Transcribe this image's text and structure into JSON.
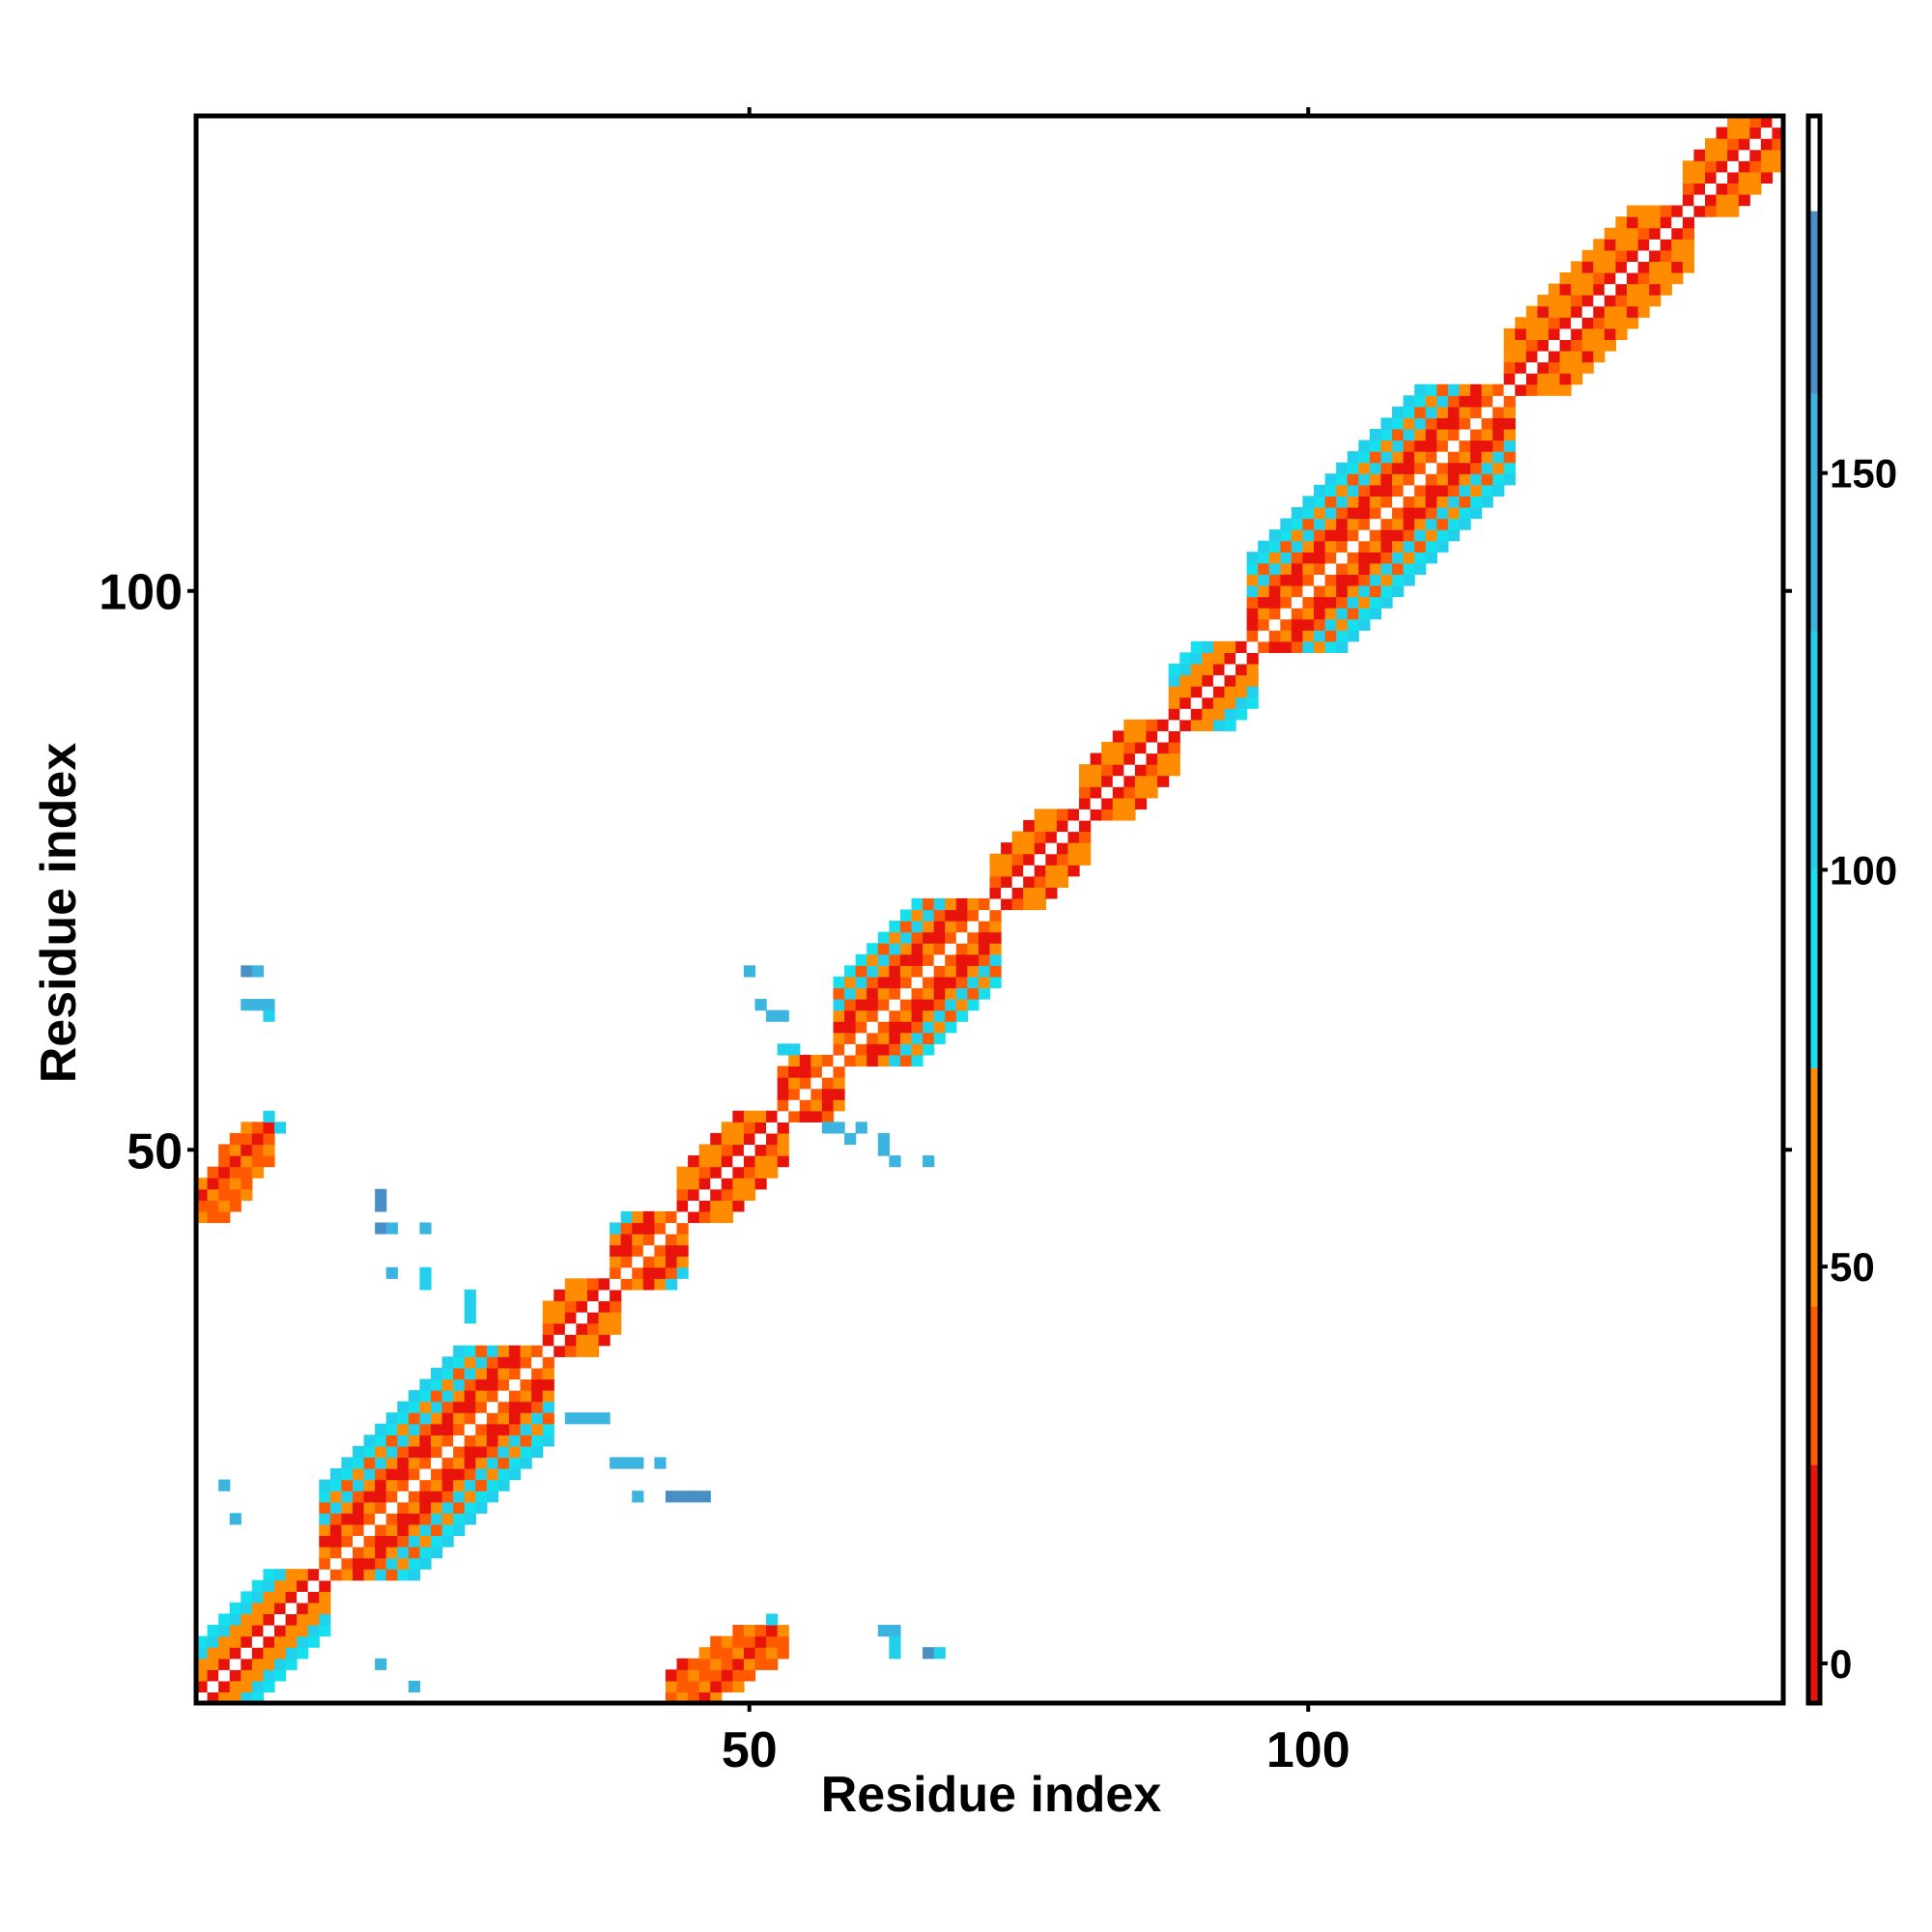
{
  "chart_data": {
    "type": "heatmap",
    "title": "",
    "xlabel": "Residue index",
    "ylabel": "Residue index",
    "xlim": [
      1,
      142
    ],
    "ylim": [
      1,
      142
    ],
    "x_ticks": [
      50,
      100
    ],
    "y_ticks": [
      50,
      100
    ],
    "colorbar": {
      "ticks": [
        0,
        50,
        100,
        150
      ],
      "range": [
        -5,
        195
      ],
      "bands": [
        {
          "from": -5,
          "to": 25,
          "color": "#e8140c"
        },
        {
          "from": 25,
          "to": 45,
          "color": "#ff5a00"
        },
        {
          "from": 45,
          "to": 75,
          "color": "#ff8c00"
        },
        {
          "from": 75,
          "to": 100,
          "color": "#16e0ee"
        },
        {
          "from": 100,
          "to": 130,
          "color": "#22d0ec"
        },
        {
          "from": 130,
          "to": 160,
          "color": "#3cb4e0"
        },
        {
          "from": 160,
          "to": 183,
          "color": "#4a8ec8"
        },
        {
          "from": 183,
          "to": 195,
          "color": "#ffffff"
        }
      ]
    },
    "grid": false,
    "legend": "colorbar-right",
    "diagonal_segments": [
      {
        "start": 1,
        "end": 12,
        "width": 5,
        "type": "mixed"
      },
      {
        "start": 12,
        "end": 32,
        "width": 8,
        "type": "helix"
      },
      {
        "start": 32,
        "end": 38,
        "width": 4,
        "type": "loop"
      },
      {
        "start": 38,
        "end": 44,
        "width": 5,
        "type": "helix"
      },
      {
        "start": 44,
        "end": 53,
        "width": 4,
        "type": "loop"
      },
      {
        "start": 53,
        "end": 58,
        "width": 4,
        "type": "helix"
      },
      {
        "start": 58,
        "end": 72,
        "width": 7,
        "type": "helix"
      },
      {
        "start": 72,
        "end": 80,
        "width": 4,
        "type": "loop"
      },
      {
        "start": 80,
        "end": 88,
        "width": 4,
        "type": "loop"
      },
      {
        "start": 88,
        "end": 95,
        "width": 5,
        "type": "mixed"
      },
      {
        "start": 95,
        "end": 118,
        "width": 8,
        "type": "helix"
      },
      {
        "start": 118,
        "end": 134,
        "width": 5,
        "type": "loop"
      },
      {
        "start": 134,
        "end": 142,
        "width": 4,
        "type": "loop"
      }
    ],
    "off_diagonal_blocks": [
      {
        "x": [
          1,
          7
        ],
        "y": [
          44,
          52
        ],
        "value": 30
      },
      {
        "x": [
          43,
          53
        ],
        "y": [
          1,
          7
        ],
        "value": 30
      }
    ],
    "sparse_contacts": [
      [
        5,
        66,
        170
      ],
      [
        6,
        66,
        140
      ],
      [
        5,
        63,
        140
      ],
      [
        6,
        63,
        140
      ],
      [
        7,
        63,
        140
      ],
      [
        7,
        62,
        120
      ],
      [
        7,
        53,
        120
      ],
      [
        8,
        52,
        120
      ],
      [
        3,
        20,
        140
      ],
      [
        4,
        17,
        140
      ],
      [
        17,
        46,
        170
      ],
      [
        17,
        45,
        170
      ],
      [
        17,
        43,
        170
      ],
      [
        18,
        43,
        140
      ],
      [
        21,
        43,
        140
      ],
      [
        18,
        39,
        140
      ],
      [
        21,
        39,
        110
      ],
      [
        21,
        38,
        110
      ],
      [
        25,
        37,
        110
      ],
      [
        25,
        36,
        110
      ],
      [
        25,
        35,
        110
      ],
      [
        17,
        4,
        140
      ],
      [
        20,
        2,
        140
      ],
      [
        34,
        26,
        140
      ],
      [
        35,
        26,
        140
      ],
      [
        36,
        26,
        140
      ],
      [
        37,
        26,
        140
      ],
      [
        38,
        22,
        140
      ],
      [
        39,
        22,
        140
      ],
      [
        40,
        22,
        140
      ],
      [
        42,
        22,
        140
      ],
      [
        40,
        19,
        140
      ],
      [
        43,
        19,
        170
      ],
      [
        44,
        19,
        170
      ],
      [
        45,
        19,
        170
      ],
      [
        46,
        19,
        170
      ],
      [
        62,
        7,
        140
      ],
      [
        63,
        7,
        140
      ],
      [
        63,
        6,
        110
      ],
      [
        63,
        5,
        110
      ],
      [
        66,
        5,
        170
      ],
      [
        67,
        5,
        110
      ],
      [
        52,
        8,
        110
      ],
      [
        50,
        66,
        140
      ],
      [
        51,
        63,
        140
      ],
      [
        52,
        62,
        140
      ],
      [
        53,
        62,
        140
      ],
      [
        53,
        59,
        110
      ],
      [
        54,
        59,
        110
      ],
      [
        57,
        52,
        140
      ],
      [
        58,
        52,
        140
      ],
      [
        59,
        51,
        140
      ],
      [
        60,
        52,
        140
      ],
      [
        62,
        51,
        140
      ],
      [
        62,
        50,
        140
      ],
      [
        63,
        49,
        140
      ],
      [
        66,
        49,
        140
      ]
    ]
  }
}
